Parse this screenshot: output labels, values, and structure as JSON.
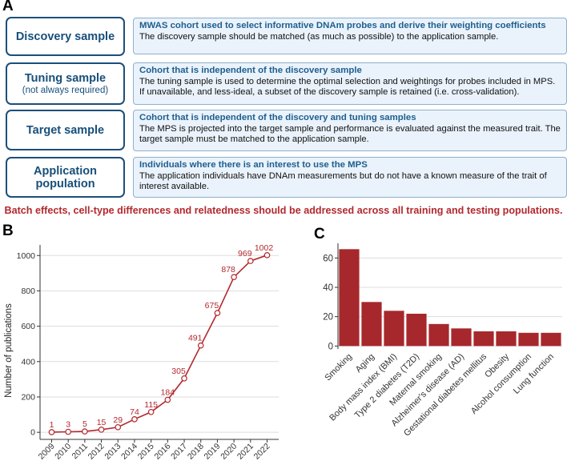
{
  "panel_a": {
    "letter": "A",
    "rows": [
      {
        "label": "Discovery sample",
        "sublabel": "",
        "heading": "MWAS cohort used to select informative DNAm probes and derive their weighting coefficients",
        "text": "The discovery sample should be matched (as much as possible) to the application sample."
      },
      {
        "label": "Tuning sample",
        "sublabel": "(not always required)",
        "heading": "Cohort that is independent of the discovery sample",
        "text": "The tuning sample is used to determine the optimal selection and weightings for probes included in MPS. If unavailable, and less-ideal, a subset of the discovery sample is retained (i.e. cross-validation)."
      },
      {
        "label": "Target sample",
        "sublabel": "",
        "heading": "Cohort that is independent of the discovery and tuning samples",
        "text": "The MPS is projected into the target sample and performance is evaluated against the measured trait. The target sample must be matched to the application sample."
      },
      {
        "label": "Application population",
        "sublabel": "",
        "heading": "Individuals where there is an interest to use the MPS",
        "text": "The application individuals have DNAm measurements but do not have a known measure of the trait of interest available."
      }
    ],
    "warning": "Batch effects, cell-type differences and relatedness should be addressed across all training and testing populations.",
    "colors": {
      "label_border": "#1c4f79",
      "label_text": "#174f7a",
      "desc_bg": "#eaf2fb",
      "warning": "#b3282d"
    }
  },
  "chart_data": [
    {
      "panel": "B",
      "type": "line",
      "title": "",
      "xlabel": "",
      "ylabel": "Number of publications",
      "x": [
        "2009",
        "2010",
        "2011",
        "2012",
        "2013",
        "2014",
        "2015",
        "2016",
        "2017",
        "2018",
        "2019",
        "2020",
        "2021",
        "2022"
      ],
      "values": [
        1,
        3,
        5,
        15,
        29,
        74,
        115,
        184,
        305,
        491,
        675,
        878,
        969,
        1002
      ],
      "yticks": [
        0,
        200,
        400,
        600,
        800,
        1000
      ],
      "ylim": [
        -40,
        1060
      ],
      "grid": true,
      "data_labels": true,
      "color": "#b3282d"
    },
    {
      "panel": "C",
      "type": "bar",
      "title": "",
      "xlabel": "",
      "ylabel": "",
      "categories": [
        "Smoking",
        "Aging",
        "Body mass index (BMI)",
        "Type 2 diabetes (T2D)",
        "Maternal smoking",
        "Alzheimer's disease (AD)",
        "Gestational diabetes mellitus",
        "Obesity",
        "Alcohol consumption",
        "Lung function"
      ],
      "values": [
        66,
        30,
        24,
        22,
        15,
        12,
        10,
        10,
        9,
        9
      ],
      "yticks": [
        0,
        20,
        40,
        60
      ],
      "ylim": [
        -2,
        70
      ],
      "grid": true,
      "color": "#a6282c"
    }
  ]
}
